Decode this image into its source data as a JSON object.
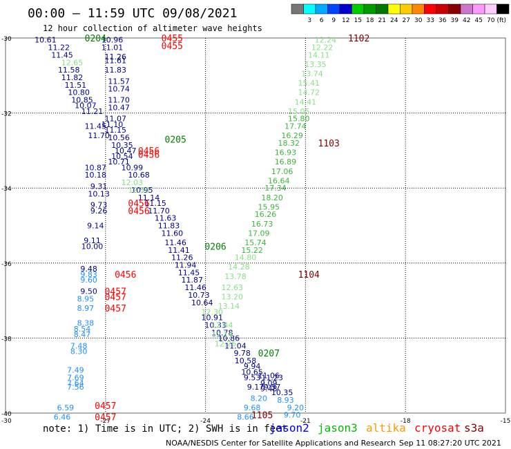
{
  "header": {
    "title": "00:00 – 11:59 UTC 09/08/2021",
    "subtitle": "12 hour collection of altimeter wave heights"
  },
  "colorbar": {
    "unit": "(ft)",
    "boxes": [
      {
        "color": "#777777",
        "label": ""
      },
      {
        "color": "#00ffff",
        "label": "3"
      },
      {
        "color": "#00aaff",
        "label": "6"
      },
      {
        "color": "#0044ff",
        "label": "9"
      },
      {
        "color": "#0000cc",
        "label": "12"
      },
      {
        "color": "#00cc00",
        "label": "15"
      },
      {
        "color": "#009900",
        "label": "18"
      },
      {
        "color": "#007700",
        "label": "21"
      },
      {
        "color": "#ffff00",
        "label": "24"
      },
      {
        "color": "#ffcc00",
        "label": "27"
      },
      {
        "color": "#ff8800",
        "label": "30"
      },
      {
        "color": "#ff0000",
        "label": "33"
      },
      {
        "color": "#cc0000",
        "label": "36"
      },
      {
        "color": "#880000",
        "label": "39"
      },
      {
        "color": "#cc77cc",
        "label": "42"
      },
      {
        "color": "#ff99ff",
        "label": "45"
      },
      {
        "color": "#ffccff",
        "label": "70"
      },
      {
        "color": "#000000",
        "label": ""
      }
    ]
  },
  "note": "note:  1) Time is in UTC;  2) SWH is in feet",
  "legend": [
    {
      "label": "jason2",
      "color": "#0000ff"
    },
    {
      "label": "jason3",
      "color": "#00bb00"
    },
    {
      "label": "altika",
      "color": "#ff9900"
    },
    {
      "label": "cryosat",
      "color": "#ff0000"
    },
    {
      "label": "s3a",
      "color": "#880000"
    }
  ],
  "footer": {
    "credit": "NOAA/NESDIS Center for Satellite Applications and Research",
    "timestamp": "Sep 11 08:27:20 UTC 2021"
  },
  "colors": {
    "c1": "#00008b",
    "c2": "#1e90ff",
    "c3": "#87e087",
    "c4": "#3cb43c",
    "time_red": "#ff0000",
    "time_green": "#008000",
    "time_maroon": "#800000"
  },
  "chart_data": {
    "type": "scatter",
    "xlim": [
      -30,
      -15
    ],
    "ylim": [
      -40,
      -30
    ],
    "x_ticks": [
      -27,
      -24,
      -21,
      -18,
      -15
    ],
    "x_tick_labels": [
      "-27",
      "-24",
      "-21",
      "-18",
      "-15"
    ],
    "x_corner_label": "-30",
    "y_ticks": [
      -30,
      -32,
      -34,
      -36,
      -38,
      -40
    ],
    "y_tick_labels": [
      "-30",
      "-32",
      "-34",
      "-36",
      "-38",
      "-40"
    ],
    "grid": true,
    "series": [
      {
        "color": "c1",
        "points": [
          {
            "x": -28.8,
            "y": -30.05,
            "v": "10.61"
          },
          {
            "x": -28.4,
            "y": -30.25,
            "v": "11.22"
          },
          {
            "x": -28.3,
            "y": -30.45,
            "v": "11.45"
          },
          {
            "x": -28.1,
            "y": -30.85,
            "v": "11.58"
          },
          {
            "x": -28.0,
            "y": -31.05,
            "v": "11.82"
          },
          {
            "x": -27.9,
            "y": -31.25,
            "v": "11.51"
          },
          {
            "x": -27.8,
            "y": -31.45,
            "v": "10.80"
          },
          {
            "x": -27.7,
            "y": -31.65,
            "v": "10.85"
          },
          {
            "x": -27.6,
            "y": -31.8,
            "v": "10.07"
          },
          {
            "x": -27.4,
            "y": -31.95,
            "v": "11.21"
          },
          {
            "x": -27.3,
            "y": -32.35,
            "v": "11.45"
          },
          {
            "x": -27.2,
            "y": -32.6,
            "v": "11.70"
          },
          {
            "x": -27.3,
            "y": -33.45,
            "v": "10.87"
          },
          {
            "x": -27.3,
            "y": -33.65,
            "v": "10.18"
          },
          {
            "x": -27.2,
            "y": -33.95,
            "v": "9.31"
          },
          {
            "x": -27.2,
            "y": -34.15,
            "v": "10.13"
          },
          {
            "x": -27.2,
            "y": -34.45,
            "v": "9.73"
          },
          {
            "x": -27.2,
            "y": -34.6,
            "v": "9.26"
          },
          {
            "x": -27.3,
            "y": -35.0,
            "v": "9.14"
          },
          {
            "x": -27.4,
            "y": -35.4,
            "v": "9.11"
          },
          {
            "x": -27.4,
            "y": -35.55,
            "v": "10.00"
          },
          {
            "x": -27.5,
            "y": -36.15,
            "v": "9.48"
          },
          {
            "x": -27.5,
            "y": -36.75,
            "v": "9.50"
          },
          {
            "x": -26.8,
            "y": -30.05,
            "v": "10.96"
          },
          {
            "x": -26.8,
            "y": -30.25,
            "v": "11.01"
          },
          {
            "x": -26.7,
            "y": -30.5,
            "v": "11.26"
          },
          {
            "x": -26.7,
            "y": -30.6,
            "v": "11.61"
          },
          {
            "x": -26.7,
            "y": -30.85,
            "v": "11.83"
          },
          {
            "x": -26.6,
            "y": -31.15,
            "v": "11.57"
          },
          {
            "x": -26.6,
            "y": -31.35,
            "v": "10.74"
          },
          {
            "x": -26.6,
            "y": -31.65,
            "v": "11.70"
          },
          {
            "x": -26.6,
            "y": -31.85,
            "v": "10.47"
          },
          {
            "x": -26.7,
            "y": -32.15,
            "v": "11.07"
          },
          {
            "x": -26.8,
            "y": -32.3,
            "v": "11.10"
          },
          {
            "x": -26.7,
            "y": -32.45,
            "v": "11.15"
          },
          {
            "x": -26.6,
            "y": -32.65,
            "v": "10.56"
          },
          {
            "x": -26.5,
            "y": -32.85,
            "v": "10.35"
          },
          {
            "x": -26.4,
            "y": -33.0,
            "v": "10.47"
          },
          {
            "x": -26.5,
            "y": -33.15,
            "v": "10.54"
          },
          {
            "x": -26.6,
            "y": -33.3,
            "v": "10.71"
          },
          {
            "x": -26.2,
            "y": -33.45,
            "v": "10.99"
          },
          {
            "x": -26.0,
            "y": -33.65,
            "v": "10.68"
          },
          {
            "x": -25.9,
            "y": -34.05,
            "v": "10.95"
          },
          {
            "x": -25.7,
            "y": -34.25,
            "v": "11.14"
          },
          {
            "x": -25.5,
            "y": -34.4,
            "v": "11.15"
          },
          {
            "x": -25.4,
            "y": -34.6,
            "v": "11.70"
          },
          {
            "x": -25.2,
            "y": -34.8,
            "v": "11.63"
          },
          {
            "x": -25.1,
            "y": -35.0,
            "v": "11.83"
          },
          {
            "x": -25.0,
            "y": -35.2,
            "v": "11.60"
          },
          {
            "x": -24.9,
            "y": -35.45,
            "v": "11.46"
          },
          {
            "x": -24.8,
            "y": -35.65,
            "v": "11.41"
          },
          {
            "x": -24.7,
            "y": -35.85,
            "v": "11.26"
          },
          {
            "x": -24.6,
            "y": -36.05,
            "v": "11.94"
          },
          {
            "x": -24.5,
            "y": -36.25,
            "v": "11.45"
          },
          {
            "x": -24.4,
            "y": -36.45,
            "v": "11.87"
          },
          {
            "x": -24.3,
            "y": -36.65,
            "v": "11.46"
          },
          {
            "x": -24.2,
            "y": -36.85,
            "v": "10.73"
          },
          {
            "x": -24.1,
            "y": -37.05,
            "v": "10.64"
          },
          {
            "x": -23.8,
            "y": -37.45,
            "v": "10.91"
          },
          {
            "x": -23.7,
            "y": -37.65,
            "v": "10.33"
          },
          {
            "x": -23.5,
            "y": -37.85,
            "v": "10.78"
          },
          {
            "x": -23.3,
            "y": -38.0,
            "v": "10.86"
          },
          {
            "x": -23.1,
            "y": -38.2,
            "v": "11.04"
          },
          {
            "x": -22.9,
            "y": -38.4,
            "v": "9.78"
          },
          {
            "x": -22.8,
            "y": -38.6,
            "v": "10.58"
          },
          {
            "x": -22.6,
            "y": -38.75,
            "v": "9.94"
          },
          {
            "x": -22.6,
            "y": -38.9,
            "v": "10.65"
          },
          {
            "x": -22.6,
            "y": -39.05,
            "v": "9.53"
          },
          {
            "x": -22.5,
            "y": -39.3,
            "v": "9.17"
          },
          {
            "x": -22.1,
            "y": -39.0,
            "v": "11.06"
          },
          {
            "x": -22.1,
            "y": -39.2,
            "v": "9.09"
          },
          {
            "x": -22.1,
            "y": -39.35,
            "v": "9.48"
          },
          {
            "x": -22.0,
            "y": -39.05,
            "v": "11.23"
          },
          {
            "x": -22.0,
            "y": -39.3,
            "v": "9.57"
          },
          {
            "x": -21.7,
            "y": -39.45,
            "v": "10.35"
          }
        ]
      },
      {
        "color": "c2",
        "points": [
          {
            "x": -27.5,
            "y": -36.3,
            "v": "9.83"
          },
          {
            "x": -27.5,
            "y": -36.45,
            "v": "9.60"
          },
          {
            "x": -27.6,
            "y": -36.95,
            "v": "8.95"
          },
          {
            "x": -27.6,
            "y": -37.2,
            "v": "8.97"
          },
          {
            "x": -27.6,
            "y": -37.6,
            "v": "8.38"
          },
          {
            "x": -27.7,
            "y": -37.75,
            "v": "8.54"
          },
          {
            "x": -27.7,
            "y": -37.9,
            "v": "8.47"
          },
          {
            "x": -27.8,
            "y": -38.2,
            "v": "7.48"
          },
          {
            "x": -27.8,
            "y": -38.35,
            "v": "8.30"
          },
          {
            "x": -27.9,
            "y": -38.85,
            "v": "7.49"
          },
          {
            "x": -27.9,
            "y": -39.05,
            "v": "7.69"
          },
          {
            "x": -27.9,
            "y": -39.2,
            "v": "7.64"
          },
          {
            "x": -27.9,
            "y": -39.3,
            "v": "7.56"
          },
          {
            "x": -28.2,
            "y": -39.85,
            "v": "6.59"
          },
          {
            "x": -28.3,
            "y": -40.1,
            "v": "6.46"
          },
          {
            "x": -22.4,
            "y": -39.6,
            "v": "8.20"
          },
          {
            "x": -22.6,
            "y": -39.85,
            "v": "9.68"
          },
          {
            "x": -22.8,
            "y": -40.1,
            "v": "8.66"
          },
          {
            "x": -21.6,
            "y": -39.65,
            "v": "8.93"
          },
          {
            "x": -21.3,
            "y": -39.85,
            "v": "9.20"
          },
          {
            "x": -21.4,
            "y": -40.05,
            "v": "9.70"
          }
        ]
      },
      {
        "color": "c3",
        "points": [
          {
            "x": -28.0,
            "y": -30.65,
            "v": "12.65"
          },
          {
            "x": -26.2,
            "y": -33.85,
            "v": "12.03"
          },
          {
            "x": -26.0,
            "y": -34.05,
            "v": "12.56"
          },
          {
            "x": -23.8,
            "y": -37.3,
            "v": "12.30"
          },
          {
            "x": -20.4,
            "y": -30.05,
            "v": "12.24"
          },
          {
            "x": -20.5,
            "y": -30.25,
            "v": "12.22"
          },
          {
            "x": -20.6,
            "y": -30.45,
            "v": "14.11"
          },
          {
            "x": -20.7,
            "y": -30.7,
            "v": "13.35"
          },
          {
            "x": -20.8,
            "y": -30.95,
            "v": "13.74"
          },
          {
            "x": -20.9,
            "y": -31.2,
            "v": "15.41"
          },
          {
            "x": -20.9,
            "y": -31.45,
            "v": "14.72"
          },
          {
            "x": -21.0,
            "y": -31.7,
            "v": "14.41"
          },
          {
            "x": -21.2,
            "y": -31.95,
            "v": "15.05"
          },
          {
            "x": -22.8,
            "y": -35.85,
            "v": "14.80"
          },
          {
            "x": -23.0,
            "y": -36.1,
            "v": "14.28"
          },
          {
            "x": -23.1,
            "y": -36.35,
            "v": "13.78"
          },
          {
            "x": -23.2,
            "y": -36.65,
            "v": "12.63"
          },
          {
            "x": -23.2,
            "y": -36.9,
            "v": "13.20"
          },
          {
            "x": -23.3,
            "y": -37.15,
            "v": "13.14"
          },
          {
            "x": -23.5,
            "y": -37.65,
            "v": "12.44"
          },
          {
            "x": -23.5,
            "y": -37.9,
            "v": "12.14"
          },
          {
            "x": -23.4,
            "y": -38.15,
            "v": "12.26"
          }
        ]
      },
      {
        "color": "c4",
        "points": [
          {
            "x": -21.2,
            "y": -32.15,
            "v": "15.80"
          },
          {
            "x": -21.3,
            "y": -32.35,
            "v": "17.74"
          },
          {
            "x": -21.4,
            "y": -32.6,
            "v": "16.29"
          },
          {
            "x": -21.5,
            "y": -32.8,
            "v": "18.32"
          },
          {
            "x": -21.6,
            "y": -33.05,
            "v": "16.93"
          },
          {
            "x": -21.6,
            "y": -33.3,
            "v": "16.89"
          },
          {
            "x": -21.7,
            "y": -33.55,
            "v": "17.06"
          },
          {
            "x": -21.8,
            "y": -33.8,
            "v": "16.64"
          },
          {
            "x": -21.9,
            "y": -34.0,
            "v": "17.34"
          },
          {
            "x": -22.0,
            "y": -34.25,
            "v": "18.20"
          },
          {
            "x": -22.1,
            "y": -34.5,
            "v": "15.95"
          },
          {
            "x": -22.2,
            "y": -34.7,
            "v": "16.26"
          },
          {
            "x": -22.3,
            "y": -34.95,
            "v": "16.73"
          },
          {
            "x": -22.4,
            "y": -35.2,
            "v": "17.09"
          },
          {
            "x": -22.5,
            "y": -35.45,
            "v": "15.74"
          },
          {
            "x": -22.6,
            "y": -35.65,
            "v": "15.22"
          }
        ]
      }
    ],
    "time_labels": [
      {
        "x": -27.3,
        "y": -30.0,
        "v": "0204",
        "color": "time_green"
      },
      {
        "x": -25.0,
        "y": -30.0,
        "v": "0455",
        "color": "time_red"
      },
      {
        "x": -25.0,
        "y": -30.2,
        "v": "0455",
        "color": "time_red"
      },
      {
        "x": -24.9,
        "y": -32.7,
        "v": "0205",
        "color": "time_green"
      },
      {
        "x": -25.7,
        "y": -33.0,
        "v": "0456",
        "color": "time_red"
      },
      {
        "x": -25.7,
        "y": -33.1,
        "v": "0456",
        "color": "time_red"
      },
      {
        "x": -26.0,
        "y": -34.4,
        "v": "0456",
        "color": "time_red"
      },
      {
        "x": -26.0,
        "y": -34.6,
        "v": "0456",
        "color": "time_red"
      },
      {
        "x": -23.7,
        "y": -35.55,
        "v": "0206",
        "color": "time_green"
      },
      {
        "x": -26.4,
        "y": -36.3,
        "v": "0456",
        "color": "time_red"
      },
      {
        "x": -26.7,
        "y": -36.75,
        "v": "0457",
        "color": "time_red"
      },
      {
        "x": -26.7,
        "y": -36.9,
        "v": "0457",
        "color": "time_red"
      },
      {
        "x": -26.7,
        "y": -37.2,
        "v": "0457",
        "color": "time_red"
      },
      {
        "x": -22.1,
        "y": -38.4,
        "v": "0207",
        "color": "time_green"
      },
      {
        "x": -27.0,
        "y": -39.8,
        "v": "0457",
        "color": "time_red"
      },
      {
        "x": -27.0,
        "y": -40.1,
        "v": "0457",
        "color": "time_red"
      },
      {
        "x": -19.4,
        "y": -30.0,
        "v": "1102",
        "color": "time_maroon"
      },
      {
        "x": -20.3,
        "y": -32.8,
        "v": "1103",
        "color": "time_maroon"
      },
      {
        "x": -20.9,
        "y": -36.3,
        "v": "1104",
        "color": "time_maroon"
      },
      {
        "x": -22.3,
        "y": -40.05,
        "v": "1105",
        "color": "time_maroon"
      }
    ]
  }
}
